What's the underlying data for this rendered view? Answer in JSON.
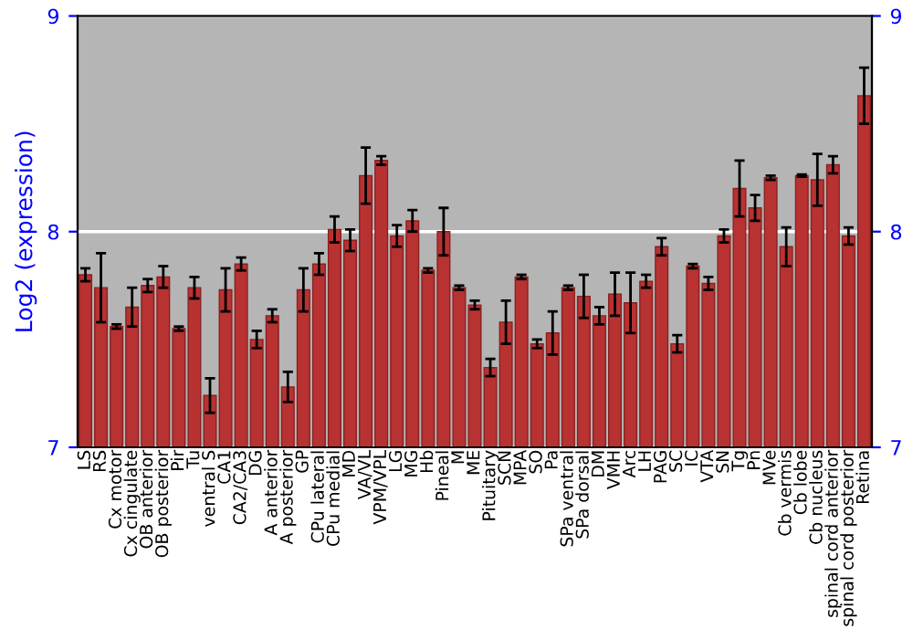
{
  "chart_data": {
    "type": "bar",
    "ylabel": "Log2 (expression)",
    "categories": [
      "LS",
      "RS",
      "Cx motor",
      "Cx cingulate",
      "OB anterior",
      "OB posterior",
      "Pir",
      "Tu",
      "ventral S",
      "CA1",
      "CA2/CA3",
      "DG",
      "A anterior",
      "A posterior",
      "GP",
      "CPu lateral",
      "CPu medial",
      "MD",
      "VA/VL",
      "VPM/VPL",
      "LG",
      "MG",
      "Hb",
      "Pineal",
      "M",
      "ME",
      "Pituitary",
      "SCN",
      "MPA",
      "SO",
      "Pa",
      "SPa ventral",
      "SPa dorsal",
      "DM",
      "VMH",
      "Arc",
      "LH",
      "PAG",
      "SC",
      "IC",
      "VTA",
      "SN",
      "Tg",
      "Pn",
      "MVe",
      "Cb vermis",
      "Cb lobe",
      "Cb nucleus",
      "spinal cord anterior",
      "spinal cord posterior",
      "Retina"
    ],
    "values": [
      7.8,
      7.74,
      7.56,
      7.65,
      7.75,
      7.79,
      7.55,
      7.74,
      7.24,
      7.73,
      7.85,
      7.5,
      7.61,
      7.28,
      7.73,
      7.85,
      8.01,
      7.96,
      8.26,
      8.33,
      7.98,
      8.05,
      7.82,
      8.0,
      7.74,
      7.66,
      7.37,
      7.58,
      7.79,
      7.48,
      7.53,
      7.74,
      7.7,
      7.61,
      7.71,
      7.67,
      7.77,
      7.93,
      7.48,
      7.84,
      7.76,
      7.98,
      8.2,
      8.11,
      8.25,
      7.93,
      8.26,
      8.24,
      8.31,
      7.98,
      8.63
    ],
    "errors": [
      0.03,
      0.16,
      0.01,
      0.09,
      0.03,
      0.05,
      0.01,
      0.05,
      0.08,
      0.1,
      0.03,
      0.04,
      0.03,
      0.07,
      0.1,
      0.05,
      0.06,
      0.05,
      0.13,
      0.02,
      0.05,
      0.05,
      0.01,
      0.11,
      0.01,
      0.02,
      0.04,
      0.1,
      0.01,
      0.02,
      0.1,
      0.01,
      0.1,
      0.04,
      0.1,
      0.14,
      0.03,
      0.04,
      0.04,
      0.01,
      0.03,
      0.03,
      0.13,
      0.06,
      0.01,
      0.09,
      0.005,
      0.12,
      0.04,
      0.04,
      0.13
    ],
    "color": "#b83232",
    "ylim": [
      7,
      9
    ],
    "yticks": [
      7,
      8,
      9
    ],
    "y2lim": [
      7,
      9
    ],
    "y2ticks": [
      7,
      8,
      9
    ],
    "grid": "y"
  }
}
